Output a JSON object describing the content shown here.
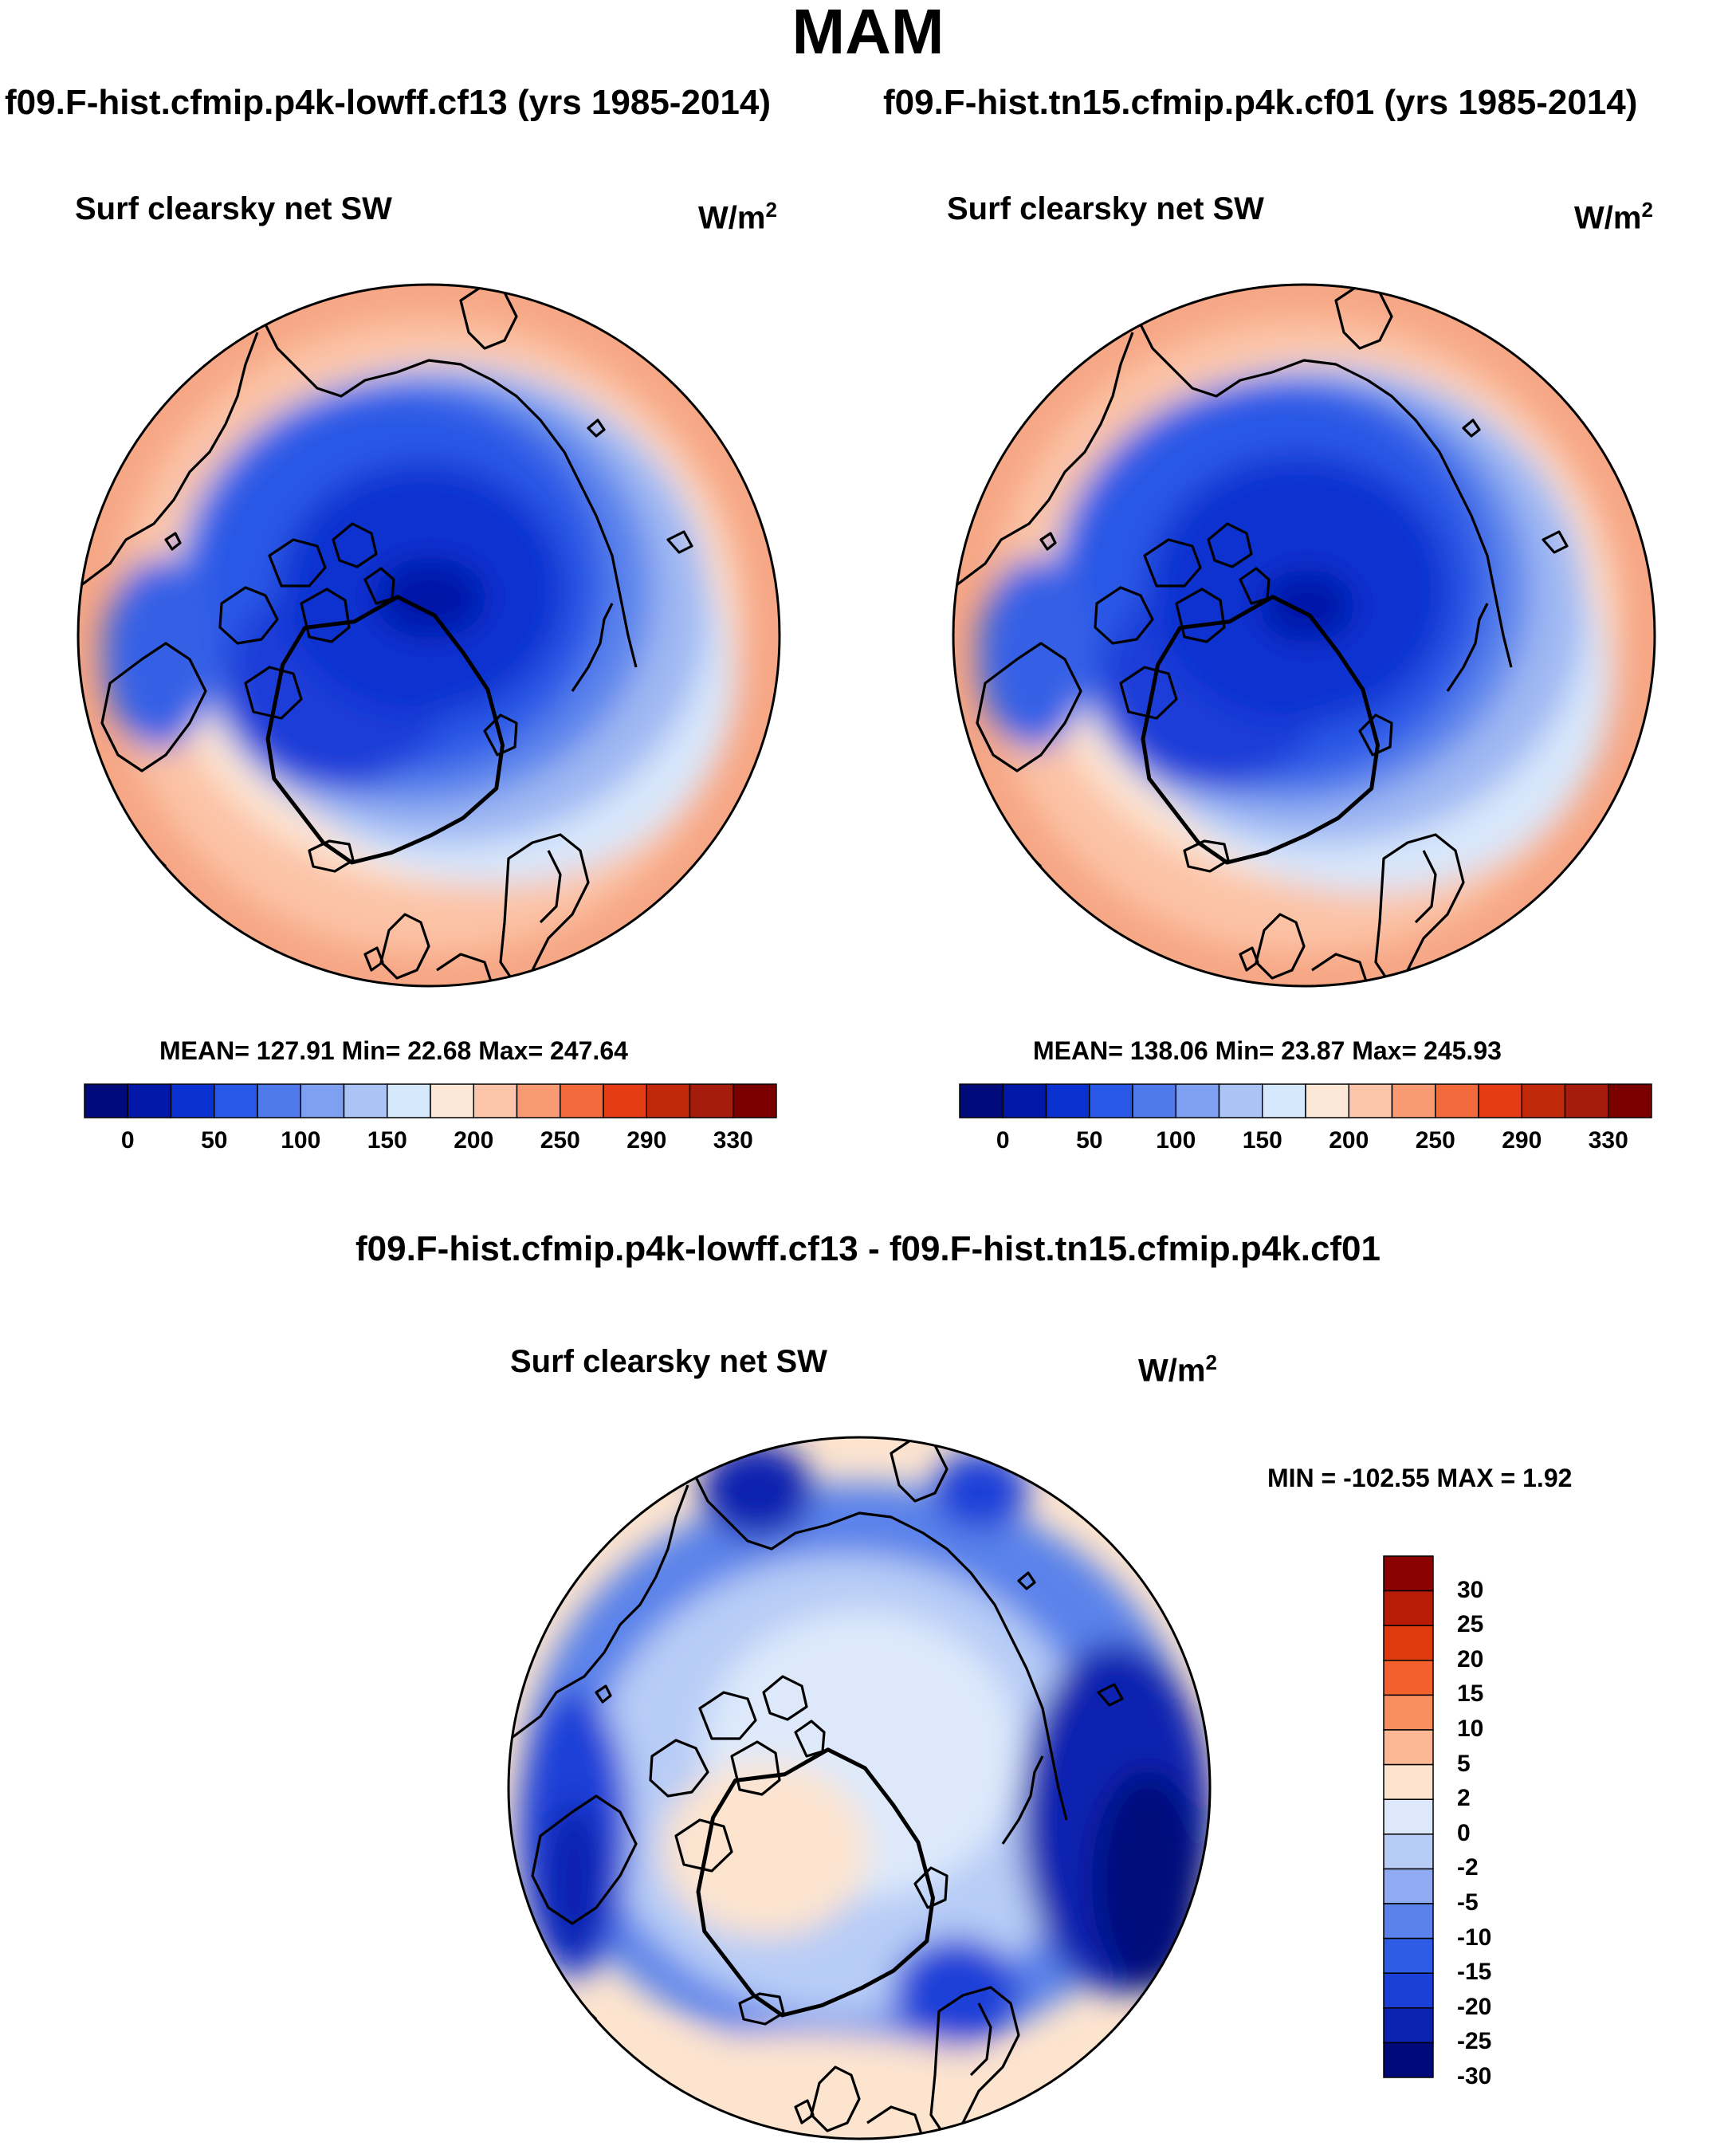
{
  "title": "MAM",
  "case1_title": "f09.F-hist.cfmip.p4k-lowff.cf13 (yrs 1985-2014)",
  "case2_title": "f09.F-hist.tn15.cfmip.p4k.cf01 (yrs 1985-2014)",
  "diff_title": "f09.F-hist.cfmip.p4k-lowff.cf13 - f09.F-hist.tn15.cfmip.p4k.cf01",
  "panels": {
    "left": {
      "variable": "Surf clearsky net SW",
      "units_base": "W/m",
      "units_exp": "2",
      "stats": "MEAN= 127.91  Min=  22.68  Max= 247.64"
    },
    "right": {
      "variable": "Surf clearsky net SW",
      "units_base": "W/m",
      "units_exp": "2",
      "stats": "MEAN= 138.06  Min=  23.87  Max= 245.93"
    },
    "diff": {
      "variable": "Surf clearsky net SW",
      "units_base": "W/m",
      "units_exp": "2",
      "stats": "MIN = -102.55 MAX =   1.92"
    }
  },
  "colorbar_main": {
    "colors": [
      "#000a7a",
      "#0017a8",
      "#0a32d0",
      "#2a58e6",
      "#4f7aeb",
      "#7fa0f0",
      "#aac4f5",
      "#d6e8fb",
      "#fde8d8",
      "#fcc4a8",
      "#f99a72",
      "#f26a3c",
      "#e43c14",
      "#c02a0a",
      "#a61c0c",
      "#7a0000"
    ],
    "tick_labels": [
      "0",
      "50",
      "100",
      "150",
      "200",
      "250",
      "290",
      "330"
    ]
  },
  "colorbar_diff": {
    "colors_top_to_bottom": [
      "#8b0000",
      "#b81c06",
      "#de3a0e",
      "#f3602e",
      "#f88e5e",
      "#fcb894",
      "#fde4cf",
      "#dde9fb",
      "#b7ccf6",
      "#90abf1",
      "#5a82ea",
      "#2f5ce6",
      "#1a40d8",
      "#0b23b0",
      "#00097a"
    ],
    "tick_labels": [
      "30",
      "25",
      "20",
      "15",
      "10",
      "5",
      "2",
      "0",
      "-2",
      "-5",
      "-10",
      "-15",
      "-20",
      "-25",
      "-30"
    ]
  }
}
